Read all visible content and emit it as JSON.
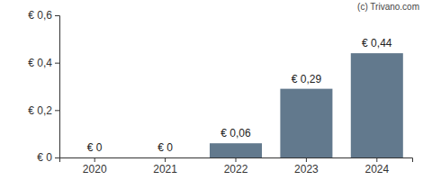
{
  "chart_data": {
    "type": "bar",
    "categories": [
      "2020",
      "2021",
      "2022",
      "2023",
      "2024"
    ],
    "values": [
      0,
      0,
      0.06,
      0.29,
      0.44
    ],
    "value_labels": [
      "€ 0",
      "€ 0",
      "€ 0,06",
      "€ 0,29",
      "€ 0,44"
    ],
    "data_labels": true,
    "color": "#62798d",
    "ylim": [
      0,
      0.6
    ],
    "yticks": [
      {
        "value": 0,
        "label": "€ 0"
      },
      {
        "value": 0.2,
        "label": "€ 0,2"
      },
      {
        "value": 0.4,
        "label": "€ 0,4"
      },
      {
        "value": 0.6,
        "label": "€ 0,6"
      }
    ],
    "grid": false,
    "annotations": [
      "(c) Trivano.com"
    ]
  }
}
